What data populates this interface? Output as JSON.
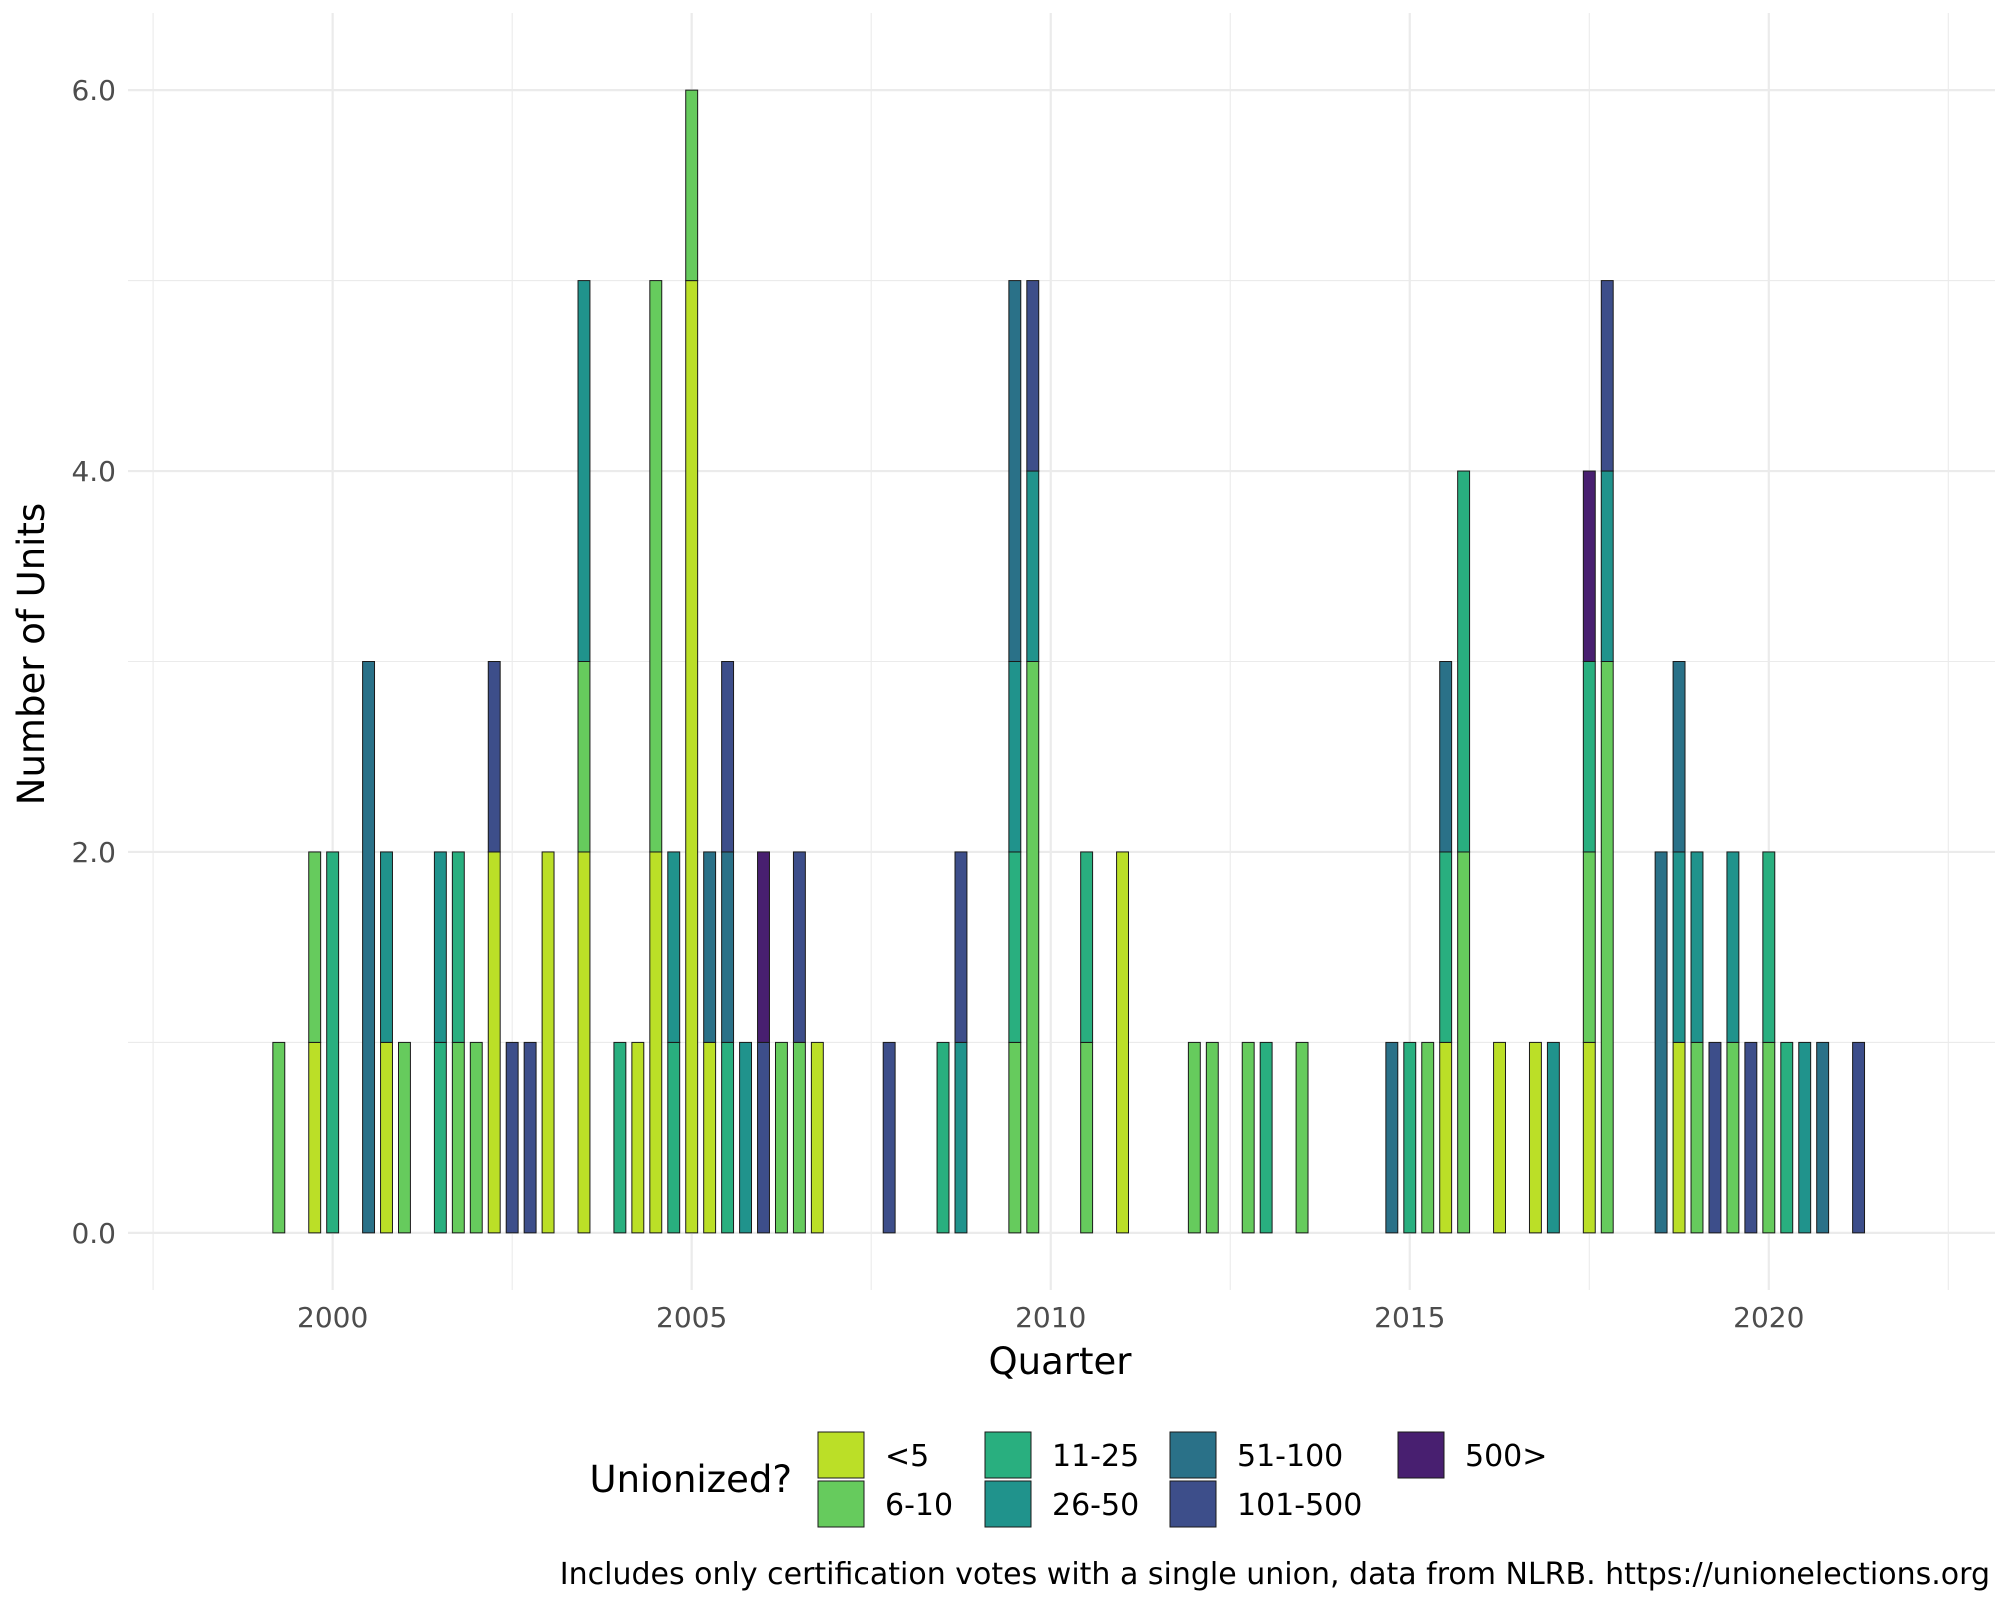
{
  "chart_data": {
    "type": "bar",
    "stacked": true,
    "xlabel": "Quarter",
    "ylabel": "Number of Units",
    "caption": "Includes only certification votes with a single union, data from NLRB. https://unionelections.org",
    "xlim": [
      1997.15,
      2023.15
    ],
    "ylim": [
      -0.3,
      6.3
    ],
    "x_ticks": [
      {
        "value": 2000,
        "label": "2000"
      },
      {
        "value": 2005,
        "label": "2005"
      },
      {
        "value": 2010,
        "label": "2010"
      },
      {
        "value": 2015,
        "label": "2015"
      },
      {
        "value": 2020,
        "label": "2020"
      }
    ],
    "y_ticks": [
      {
        "value": 0,
        "label": "0.0"
      },
      {
        "value": 2,
        "label": "2.0"
      },
      {
        "value": 4,
        "label": "4.0"
      },
      {
        "value": 6,
        "label": "6.0"
      }
    ],
    "grid": true,
    "bar_width_years": 0.2,
    "legend": {
      "title": "Unionized?",
      "position": "bottom",
      "entries": [
        {
          "key": "<5",
          "label": "<5",
          "color": "#BBDF27"
        },
        {
          "key": "6-10",
          "label": "6-10",
          "color": "#66CB5D"
        },
        {
          "key": "11-25",
          "label": "11-25",
          "color": "#29AF7F"
        },
        {
          "key": "26-50",
          "label": "26-50",
          "color": "#20938C"
        },
        {
          "key": "51-100",
          "label": "51-100",
          "color": "#2A7188"
        },
        {
          "key": "101-500",
          "label": "101-500",
          "color": "#3D4E8A"
        },
        {
          "key": "500>",
          "label": "500>",
          "color": "#481F70"
        }
      ]
    },
    "bars": [
      {
        "x": 1999.25,
        "stack": [
          {
            "cat": "6-10",
            "value": 1
          }
        ]
      },
      {
        "x": 1999.75,
        "stack": [
          {
            "cat": "<5",
            "value": 1
          },
          {
            "cat": "6-10",
            "value": 1
          }
        ]
      },
      {
        "x": 2000.0,
        "stack": [
          {
            "cat": "11-25",
            "value": 2
          }
        ]
      },
      {
        "x": 2000.5,
        "stack": [
          {
            "cat": "51-100",
            "value": 3
          }
        ]
      },
      {
        "x": 2000.75,
        "stack": [
          {
            "cat": "<5",
            "value": 1
          },
          {
            "cat": "26-50",
            "value": 1
          }
        ]
      },
      {
        "x": 2001.0,
        "stack": [
          {
            "cat": "6-10",
            "value": 1
          }
        ]
      },
      {
        "x": 2001.5,
        "stack": [
          {
            "cat": "11-25",
            "value": 1
          },
          {
            "cat": "26-50",
            "value": 1
          }
        ]
      },
      {
        "x": 2001.75,
        "stack": [
          {
            "cat": "6-10",
            "value": 1
          },
          {
            "cat": "11-25",
            "value": 1
          }
        ]
      },
      {
        "x": 2002.0,
        "stack": [
          {
            "cat": "6-10",
            "value": 1
          }
        ]
      },
      {
        "x": 2002.25,
        "stack": [
          {
            "cat": "<5",
            "value": 2
          },
          {
            "cat": "101-500",
            "value": 1
          }
        ]
      },
      {
        "x": 2002.5,
        "stack": [
          {
            "cat": "101-500",
            "value": 1
          }
        ]
      },
      {
        "x": 2002.75,
        "stack": [
          {
            "cat": "101-500",
            "value": 1
          }
        ]
      },
      {
        "x": 2003.0,
        "stack": [
          {
            "cat": "<5",
            "value": 2
          }
        ]
      },
      {
        "x": 2003.5,
        "stack": [
          {
            "cat": "<5",
            "value": 2
          },
          {
            "cat": "6-10",
            "value": 1
          },
          {
            "cat": "26-50",
            "value": 2
          }
        ]
      },
      {
        "x": 2004.0,
        "stack": [
          {
            "cat": "11-25",
            "value": 1
          }
        ]
      },
      {
        "x": 2004.25,
        "stack": [
          {
            "cat": "<5",
            "value": 1
          }
        ]
      },
      {
        "x": 2004.5,
        "stack": [
          {
            "cat": "<5",
            "value": 2
          },
          {
            "cat": "6-10",
            "value": 3
          }
        ]
      },
      {
        "x": 2004.75,
        "stack": [
          {
            "cat": "11-25",
            "value": 1
          },
          {
            "cat": "26-50",
            "value": 1
          }
        ]
      },
      {
        "x": 2005.0,
        "stack": [
          {
            "cat": "<5",
            "value": 5
          },
          {
            "cat": "6-10",
            "value": 1
          }
        ]
      },
      {
        "x": 2005.25,
        "stack": [
          {
            "cat": "<5",
            "value": 1
          },
          {
            "cat": "51-100",
            "value": 1
          }
        ]
      },
      {
        "x": 2005.5,
        "stack": [
          {
            "cat": "11-25",
            "value": 1
          },
          {
            "cat": "51-100",
            "value": 1
          },
          {
            "cat": "101-500",
            "value": 1
          }
        ]
      },
      {
        "x": 2005.75,
        "stack": [
          {
            "cat": "26-50",
            "value": 1
          }
        ]
      },
      {
        "x": 2006.0,
        "stack": [
          {
            "cat": "101-500",
            "value": 1
          },
          {
            "cat": "500>",
            "value": 1
          }
        ]
      },
      {
        "x": 2006.25,
        "stack": [
          {
            "cat": "6-10",
            "value": 1
          }
        ]
      },
      {
        "x": 2006.5,
        "stack": [
          {
            "cat": "6-10",
            "value": 1
          },
          {
            "cat": "101-500",
            "value": 1
          }
        ]
      },
      {
        "x": 2006.75,
        "stack": [
          {
            "cat": "<5",
            "value": 1
          }
        ]
      },
      {
        "x": 2007.75,
        "stack": [
          {
            "cat": "101-500",
            "value": 1
          }
        ]
      },
      {
        "x": 2008.5,
        "stack": [
          {
            "cat": "11-25",
            "value": 1
          }
        ]
      },
      {
        "x": 2008.75,
        "stack": [
          {
            "cat": "26-50",
            "value": 1
          },
          {
            "cat": "101-500",
            "value": 1
          }
        ]
      },
      {
        "x": 2009.5,
        "stack": [
          {
            "cat": "6-10",
            "value": 1
          },
          {
            "cat": "11-25",
            "value": 1
          },
          {
            "cat": "26-50",
            "value": 1
          },
          {
            "cat": "51-100",
            "value": 2
          }
        ]
      },
      {
        "x": 2009.75,
        "stack": [
          {
            "cat": "6-10",
            "value": 3
          },
          {
            "cat": "26-50",
            "value": 1
          },
          {
            "cat": "101-500",
            "value": 1
          }
        ]
      },
      {
        "x": 2010.5,
        "stack": [
          {
            "cat": "6-10",
            "value": 1
          },
          {
            "cat": "11-25",
            "value": 1
          }
        ]
      },
      {
        "x": 2011.0,
        "stack": [
          {
            "cat": "<5",
            "value": 2
          }
        ]
      },
      {
        "x": 2012.0,
        "stack": [
          {
            "cat": "6-10",
            "value": 1
          }
        ]
      },
      {
        "x": 2012.25,
        "stack": [
          {
            "cat": "6-10",
            "value": 1
          }
        ]
      },
      {
        "x": 2012.75,
        "stack": [
          {
            "cat": "6-10",
            "value": 1
          }
        ]
      },
      {
        "x": 2013.0,
        "stack": [
          {
            "cat": "11-25",
            "value": 1
          }
        ]
      },
      {
        "x": 2013.5,
        "stack": [
          {
            "cat": "6-10",
            "value": 1
          }
        ]
      },
      {
        "x": 2014.75,
        "stack": [
          {
            "cat": "51-100",
            "value": 1
          }
        ]
      },
      {
        "x": 2015.0,
        "stack": [
          {
            "cat": "11-25",
            "value": 1
          }
        ]
      },
      {
        "x": 2015.25,
        "stack": [
          {
            "cat": "6-10",
            "value": 1
          }
        ]
      },
      {
        "x": 2015.5,
        "stack": [
          {
            "cat": "<5",
            "value": 1
          },
          {
            "cat": "11-25",
            "value": 1
          },
          {
            "cat": "51-100",
            "value": 1
          }
        ]
      },
      {
        "x": 2015.75,
        "stack": [
          {
            "cat": "6-10",
            "value": 2
          },
          {
            "cat": "11-25",
            "value": 2
          }
        ]
      },
      {
        "x": 2016.25,
        "stack": [
          {
            "cat": "<5",
            "value": 1
          }
        ]
      },
      {
        "x": 2016.75,
        "stack": [
          {
            "cat": "<5",
            "value": 1
          }
        ]
      },
      {
        "x": 2017.0,
        "stack": [
          {
            "cat": "26-50",
            "value": 1
          }
        ]
      },
      {
        "x": 2017.5,
        "stack": [
          {
            "cat": "<5",
            "value": 1
          },
          {
            "cat": "6-10",
            "value": 1
          },
          {
            "cat": "11-25",
            "value": 1
          },
          {
            "cat": "500>",
            "value": 1
          }
        ]
      },
      {
        "x": 2017.75,
        "stack": [
          {
            "cat": "6-10",
            "value": 3
          },
          {
            "cat": "26-50",
            "value": 1
          },
          {
            "cat": "101-500",
            "value": 1
          }
        ]
      },
      {
        "x": 2018.5,
        "stack": [
          {
            "cat": "51-100",
            "value": 2
          }
        ]
      },
      {
        "x": 2018.75,
        "stack": [
          {
            "cat": "<5",
            "value": 1
          },
          {
            "cat": "26-50",
            "value": 1
          },
          {
            "cat": "51-100",
            "value": 1
          }
        ]
      },
      {
        "x": 2019.0,
        "stack": [
          {
            "cat": "6-10",
            "value": 1
          },
          {
            "cat": "26-50",
            "value": 1
          }
        ]
      },
      {
        "x": 2019.25,
        "stack": [
          {
            "cat": "101-500",
            "value": 1
          }
        ]
      },
      {
        "x": 2019.5,
        "stack": [
          {
            "cat": "6-10",
            "value": 1
          },
          {
            "cat": "26-50",
            "value": 1
          }
        ]
      },
      {
        "x": 2019.75,
        "stack": [
          {
            "cat": "101-500",
            "value": 1
          }
        ]
      },
      {
        "x": 2020.0,
        "stack": [
          {
            "cat": "6-10",
            "value": 1
          },
          {
            "cat": "11-25",
            "value": 1
          }
        ]
      },
      {
        "x": 2020.25,
        "stack": [
          {
            "cat": "11-25",
            "value": 1
          }
        ]
      },
      {
        "x": 2020.5,
        "stack": [
          {
            "cat": "26-50",
            "value": 1
          }
        ]
      },
      {
        "x": 2020.75,
        "stack": [
          {
            "cat": "51-100",
            "value": 1
          }
        ]
      },
      {
        "x": 2021.25,
        "stack": [
          {
            "cat": "101-500",
            "value": 1
          }
        ]
      }
    ]
  }
}
